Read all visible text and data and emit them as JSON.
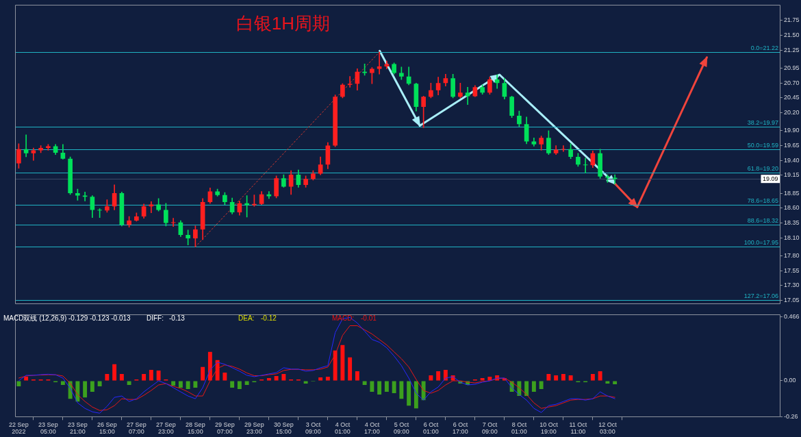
{
  "chart_data": [
    {
      "type": "candlestick",
      "title": "白银1H周期",
      "categories": [
        null,
        null,
        null,
        null,
        null,
        null,
        null,
        null,
        null,
        null,
        null,
        null,
        null,
        null,
        null,
        null,
        null,
        null,
        null,
        null,
        null,
        null,
        null,
        null,
        null,
        null,
        null,
        null,
        null,
        null,
        null,
        null,
        null,
        null,
        null,
        null,
        null,
        null,
        null,
        null,
        null,
        null,
        null,
        null,
        null,
        null,
        null,
        null,
        null,
        null,
        null,
        null,
        null,
        null,
        null,
        null,
        null,
        null,
        null,
        null,
        null,
        null,
        null,
        null,
        null,
        null,
        null,
        null,
        null,
        null,
        null,
        null,
        null,
        null,
        null,
        null,
        null,
        null,
        null,
        null,
        null,
        null,
        null,
        null,
        null,
        null,
        null,
        null,
        null,
        null,
        null,
        null,
        null,
        null,
        null,
        null,
        null,
        null,
        null,
        null,
        null,
        null,
        null,
        null
      ],
      "ohlc": [
        [
          19.35,
          19.68,
          19.27,
          19.59
        ],
        [
          19.59,
          19.83,
          19.46,
          19.52
        ],
        [
          19.52,
          19.61,
          19.4,
          19.57
        ],
        [
          19.57,
          19.65,
          19.53,
          19.61
        ],
        [
          19.61,
          19.67,
          19.57,
          19.64
        ],
        [
          19.64,
          19.67,
          19.5,
          19.53
        ],
        [
          19.53,
          19.67,
          19.42,
          19.43
        ],
        [
          19.43,
          19.46,
          18.83,
          18.85
        ],
        [
          18.85,
          18.92,
          18.73,
          18.81
        ],
        [
          18.81,
          18.87,
          18.72,
          18.79
        ],
        [
          18.79,
          18.81,
          18.44,
          18.57
        ],
        [
          18.57,
          18.59,
          18.44,
          18.56
        ],
        [
          18.56,
          18.74,
          18.53,
          18.63
        ],
        [
          18.63,
          18.99,
          18.57,
          18.85
        ],
        [
          18.85,
          18.87,
          18.3,
          18.32
        ],
        [
          18.32,
          18.46,
          18.28,
          18.39
        ],
        [
          18.39,
          18.52,
          18.38,
          18.46
        ],
        [
          18.46,
          18.67,
          18.43,
          18.63
        ],
        [
          18.63,
          18.71,
          18.52,
          18.66
        ],
        [
          18.66,
          18.76,
          18.55,
          18.57
        ],
        [
          18.57,
          18.68,
          18.3,
          18.35
        ],
        [
          18.35,
          18.43,
          18.29,
          18.36
        ],
        [
          18.36,
          18.39,
          18.12,
          18.15
        ],
        [
          18.15,
          18.23,
          17.98,
          18.09
        ],
        [
          18.09,
          18.3,
          17.95,
          18.24
        ],
        [
          18.24,
          18.76,
          18.07,
          18.7
        ],
        [
          18.7,
          18.94,
          18.68,
          18.88
        ],
        [
          18.88,
          18.92,
          18.8,
          18.82
        ],
        [
          18.82,
          18.86,
          18.66,
          18.7
        ],
        [
          18.7,
          18.77,
          18.5,
          18.53
        ],
        [
          18.53,
          18.72,
          18.48,
          18.68
        ],
        [
          18.68,
          18.81,
          18.45,
          18.65
        ],
        [
          18.65,
          18.82,
          18.63,
          18.67
        ],
        [
          18.67,
          18.88,
          18.66,
          18.83
        ],
        [
          18.83,
          18.88,
          18.76,
          18.8
        ],
        [
          18.8,
          19.14,
          18.77,
          19.1
        ],
        [
          19.1,
          19.16,
          18.95,
          18.96
        ],
        [
          18.96,
          19.23,
          18.83,
          19.16
        ],
        [
          19.16,
          19.24,
          18.95,
          18.99
        ],
        [
          18.99,
          19.14,
          18.95,
          19.09
        ],
        [
          19.09,
          19.23,
          19.07,
          19.18
        ],
        [
          19.18,
          19.46,
          19.16,
          19.33
        ],
        [
          19.33,
          19.7,
          19.26,
          19.65
        ],
        [
          19.65,
          20.5,
          19.63,
          20.47
        ],
        [
          20.47,
          20.69,
          20.45,
          20.67
        ],
        [
          20.67,
          20.81,
          20.63,
          20.69
        ],
        [
          20.69,
          20.94,
          20.58,
          20.89
        ],
        [
          20.89,
          21.02,
          20.83,
          20.87
        ],
        [
          20.87,
          20.96,
          20.69,
          20.94
        ],
        [
          20.94,
          21.22,
          20.85,
          20.98
        ],
        [
          20.98,
          21.07,
          20.94,
          21.02
        ],
        [
          21.02,
          21.04,
          20.85,
          20.87
        ],
        [
          20.87,
          20.97,
          20.76,
          20.81
        ],
        [
          20.81,
          20.97,
          20.67,
          20.69
        ],
        [
          20.69,
          20.7,
          20.23,
          20.3
        ],
        [
          20.3,
          20.48,
          19.95,
          20.47
        ],
        [
          20.47,
          20.7,
          20.45,
          20.58
        ],
        [
          20.58,
          20.8,
          20.5,
          20.7
        ],
        [
          20.7,
          20.85,
          20.65,
          20.78
        ],
        [
          20.78,
          20.85,
          20.45,
          20.47
        ],
        [
          20.47,
          20.7,
          20.45,
          20.54
        ],
        [
          20.54,
          20.63,
          20.34,
          20.48
        ],
        [
          20.48,
          20.66,
          20.47,
          20.63
        ],
        [
          20.63,
          20.67,
          20.51,
          20.54
        ],
        [
          20.54,
          20.8,
          20.51,
          20.76
        ],
        [
          20.76,
          20.84,
          20.61,
          20.7
        ],
        [
          20.7,
          20.78,
          20.43,
          20.47
        ],
        [
          20.47,
          20.48,
          20.12,
          20.15
        ],
        [
          20.15,
          20.23,
          19.97,
          20.01
        ],
        [
          20.01,
          20.13,
          19.68,
          19.72
        ],
        [
          19.72,
          19.78,
          19.64,
          19.67
        ],
        [
          19.67,
          19.81,
          19.57,
          19.78
        ],
        [
          19.78,
          19.9,
          19.5,
          19.52
        ],
        [
          19.52,
          19.65,
          19.5,
          19.58
        ],
        [
          19.58,
          19.65,
          19.55,
          19.59
        ],
        [
          19.59,
          19.68,
          19.43,
          19.46
        ],
        [
          19.46,
          19.52,
          19.3,
          19.33
        ],
        [
          19.33,
          19.44,
          19.19,
          19.32
        ],
        [
          19.32,
          19.56,
          19.28,
          19.52
        ],
        [
          19.52,
          19.59,
          19.1,
          19.13
        ],
        [
          19.13,
          19.16,
          19.03,
          19.11
        ],
        [
          19.11,
          19.16,
          19,
          19.09
        ],
        null,
        null,
        null,
        null,
        null,
        null,
        null,
        null,
        null,
        null,
        null,
        null,
        null,
        null,
        null,
        null,
        null,
        null,
        null,
        null,
        null,
        null
      ],
      "colors": [
        "#ff2020",
        "#00e05a",
        "#ff2020",
        "#ff2020",
        "#ff2020",
        "#00e05a",
        "#00e05a",
        "#00e05a",
        "#00e05a",
        "#00e05a",
        "#00e05a",
        "#00e05a",
        "#ff2020",
        "#ff2020",
        "#00e05a",
        "#ff2020",
        "#ff2020",
        "#ff2020",
        "#ff2020",
        "#00e05a",
        "#00e05a",
        "#ff2020",
        "#00e05a",
        "#00e05a",
        "#ff2020",
        "#ff2020",
        "#ff2020",
        "#00e05a",
        "#00e05a",
        "#00e05a",
        "#ff2020",
        "#00e05a",
        "#ff2020",
        "#ff2020",
        "#00e05a",
        "#ff2020",
        "#00e05a",
        "#ff2020",
        "#00e05a",
        "#ff2020",
        "#ff2020",
        "#ff2020",
        "#ff2020",
        "#ff2020",
        "#ff2020",
        "#ff2020",
        "#ff2020",
        "#00e05a",
        "#ff2020",
        "#ff2020",
        "#ff2020",
        "#00e05a",
        "#00e05a",
        "#00e05a",
        "#00e05a",
        "#ff2020",
        "#ff2020",
        "#ff2020",
        "#ff2020",
        "#00e05a",
        "#ff2020",
        "#00e05a",
        "#ff2020",
        "#00e05a",
        "#ff2020",
        "#00e05a",
        "#00e05a",
        "#00e05a",
        "#00e05a",
        "#00e05a",
        "#00e05a",
        "#ff2020",
        "#00e05a",
        "#ff2020",
        "#ff2020",
        "#00e05a",
        "#00e05a",
        "#00e05a",
        "#ff2020",
        "#00e05a",
        "#00e05a",
        "#00e05a",
        null,
        null,
        null,
        null,
        null,
        null,
        null,
        null,
        null,
        null,
        null,
        null,
        null,
        null,
        null,
        null,
        null,
        null,
        null,
        null,
        null,
        null
      ],
      "series": [
        {
          "type": "line",
          "color": "#d8392f",
          "line_style": "dotted",
          "values": [
            null,
            null,
            null,
            null,
            null,
            null,
            null,
            null,
            null,
            null,
            null,
            null,
            null,
            null,
            null,
            null,
            null,
            null,
            null,
            null,
            null,
            null,
            null,
            null,
            17.95,
            null,
            null,
            null,
            null,
            null,
            null,
            null,
            null,
            null,
            null,
            null,
            null,
            null,
            null,
            null,
            null,
            null,
            null,
            null,
            null,
            null,
            null,
            null,
            null,
            21.22,
            null,
            null,
            null,
            null,
            null,
            null,
            null,
            null,
            null,
            null,
            null,
            null,
            null,
            null,
            null,
            null,
            null,
            null,
            null,
            null,
            null,
            null,
            null,
            null,
            null,
            null,
            null,
            null,
            null,
            null,
            null,
            null,
            null,
            null,
            null,
            null,
            null,
            null,
            null,
            null,
            null,
            null,
            null,
            null,
            null,
            null,
            null,
            null,
            null,
            null,
            null,
            null,
            null,
            null
          ]
        }
      ],
      "ylim": [
        16.98,
        22.01
      ],
      "yticks": [
        21.75,
        {
          "value": 21.5,
          "label": "21.50"
        },
        21.25,
        20.95,
        {
          "value": 20.7,
          "label": "20.70"
        },
        20.45,
        {
          "value": 20.2,
          "label": "20.20"
        },
        {
          "value": 19.9,
          "label": "19.90"
        },
        19.65,
        {
          "value": 19.4,
          "label": "19.40"
        },
        19.15,
        18.85,
        {
          "value": 18.6,
          "label": "18.60"
        },
        18.35,
        {
          "value": 18.1,
          "label": "18.10"
        },
        {
          "value": 17.8,
          "label": "17.80"
        },
        17.55,
        {
          "value": 17.3,
          "label": "17.30"
        },
        17.05
      ],
      "ref_lines": [
        {
          "axis": "y",
          "value": 21.22,
          "label": "0.0=21.22",
          "color": "#1fb3c3"
        },
        {
          "axis": "y",
          "value": 19.97,
          "label": "38.2=19.97",
          "color": "#1fb3c3"
        },
        {
          "axis": "y",
          "value": 19.59,
          "label": "50.0=19.59",
          "color": "#1fb3c3"
        },
        {
          "axis": "y",
          "value": 19.2,
          "label": "61.8=19.20",
          "color": "#1fb3c3"
        },
        {
          "axis": "y",
          "value": 18.65,
          "label": "78.6=18.65",
          "color": "#1fb3c3"
        },
        {
          "axis": "y",
          "value": 18.32,
          "label": "88.6=18.32",
          "color": "#1fb3c3"
        },
        {
          "axis": "y",
          "value": 17.95,
          "label": "100.0=17.95",
          "color": "#1fb3c3"
        },
        {
          "axis": "y",
          "value": 17.06,
          "label": "127.2=17.06",
          "color": "#1fb3c3"
        },
        {
          "axis": "y",
          "value": 19.09,
          "color": "#3b4866"
        }
      ],
      "annotations": [
        {
          "text": "19.09",
          "y": 19.09
        }
      ],
      "tick_labels": "y",
      "marker": "none"
    },
    {
      "type": "bar",
      "title": "MACD双线 (12,26,9) -0.129 -0.123 -0.013",
      "categories": [
        "22 Sep 2022",
        null,
        null,
        null,
        "23 Sep 05:00",
        null,
        null,
        null,
        "23 Sep 21:00",
        null,
        null,
        null,
        "26 Sep 15:00",
        null,
        null,
        null,
        "27 Sep 07:00",
        null,
        null,
        null,
        "27 Sep 23:00",
        null,
        null,
        null,
        "28 Sep 15:00",
        null,
        null,
        null,
        "29 Sep 07:00",
        null,
        null,
        null,
        "29 Sep 23:00",
        null,
        null,
        null,
        "30 Sep 15:00",
        null,
        null,
        null,
        "3 Oct 09:00",
        null,
        null,
        null,
        "4 Oct 01:00",
        null,
        null,
        null,
        "4 Oct 17:00",
        null,
        null,
        null,
        "5 Oct 09:00",
        null,
        null,
        null,
        "6 Oct 01:00",
        null,
        null,
        null,
        "6 Oct 17:00",
        null,
        null,
        null,
        "7 Oct 09:00",
        null,
        null,
        null,
        "8 Oct 01:00",
        null,
        null,
        null,
        "10 Oct 19:00",
        null,
        null,
        null,
        "11 Oct 11:00",
        null,
        null,
        null,
        "12 Oct 03:00",
        null,
        null,
        null,
        null,
        null,
        null,
        null,
        null,
        null,
        null,
        null,
        null,
        null,
        null,
        null,
        null,
        null,
        null,
        null,
        null,
        null,
        null,
        null
      ],
      "series": [
        {
          "type": "bar",
          "values": [
            -0.04,
            0.03,
            0.01,
            0.01,
            0.01,
            -0.01,
            -0.03,
            -0.13,
            -0.15,
            -0.12,
            -0.08,
            -0.04,
            0.05,
            0.12,
            0.05,
            -0.03,
            0.01,
            0.05,
            0.08,
            0.075,
            0.01,
            -0.035,
            -0.05,
            -0.06,
            -0.05,
            0.1,
            0.21,
            0.15,
            0.06,
            -0.05,
            -0.06,
            -0.03,
            -0.01,
            0.01,
            0.02,
            0.035,
            0.05,
            0.01,
            0.01,
            -0.02,
            -0.005,
            0.025,
            0.03,
            0.22,
            0.26,
            0.17,
            0.07,
            -0.03,
            -0.08,
            -0.1,
            -0.08,
            -0.09,
            -0.13,
            -0.18,
            -0.2,
            -0.14,
            0.04,
            0.07,
            0.08,
            0.04,
            -0.02,
            -0.03,
            0.01,
            0.02,
            0.03,
            0.04,
            0.02,
            -0.08,
            -0.11,
            -0.11,
            -0.08,
            -0.06,
            0.05,
            0.04,
            0.05,
            0.04,
            -0.01,
            -0.01,
            0.05,
            0.07,
            -0.02,
            -0.025,
            null,
            null,
            null,
            null,
            null,
            null,
            null,
            null,
            null,
            null,
            null,
            null,
            null,
            null,
            null,
            null,
            null,
            null,
            null,
            null,
            null,
            null
          ],
          "colors": [
            "#3ca01e",
            "#ff1010",
            "#ff1010",
            "#ff1010",
            "#ff1010",
            "#3ca01e",
            "#3ca01e",
            "#3ca01e",
            "#3ca01e",
            "#3ca01e",
            "#3ca01e",
            "#3ca01e",
            "#ff1010",
            "#ff1010",
            "#ff1010",
            "#3ca01e",
            "#ff1010",
            "#ff1010",
            "#ff1010",
            "#ff1010",
            "#ff1010",
            "#3ca01e",
            "#3ca01e",
            "#3ca01e",
            "#3ca01e",
            "#ff1010",
            "#ff1010",
            "#ff1010",
            "#ff1010",
            "#3ca01e",
            "#3ca01e",
            "#3ca01e",
            "#3ca01e",
            "#ff1010",
            "#ff1010",
            "#ff1010",
            "#ff1010",
            "#ff1010",
            "#ff1010",
            "#3ca01e",
            "#3ca01e",
            "#ff1010",
            "#ff1010",
            "#ff1010",
            "#ff1010",
            "#ff1010",
            "#ff1010",
            "#3ca01e",
            "#3ca01e",
            "#3ca01e",
            "#3ca01e",
            "#3ca01e",
            "#3ca01e",
            "#3ca01e",
            "#3ca01e",
            "#3ca01e",
            "#ff1010",
            "#ff1010",
            "#ff1010",
            "#ff1010",
            "#3ca01e",
            "#3ca01e",
            "#ff1010",
            "#ff1010",
            "#ff1010",
            "#ff1010",
            "#ff1010",
            "#3ca01e",
            "#3ca01e",
            "#3ca01e",
            "#3ca01e",
            "#3ca01e",
            "#ff1010",
            "#ff1010",
            "#ff1010",
            "#ff1010",
            "#3ca01e",
            "#3ca01e",
            "#ff1010",
            "#ff1010",
            "#3ca01e",
            "#3ca01e",
            null,
            null,
            null,
            null,
            null,
            null,
            null,
            null,
            null,
            null,
            null,
            null,
            null,
            null,
            null,
            null,
            null,
            null,
            null,
            null,
            null,
            null
          ]
        },
        {
          "type": "line",
          "color": "#2828ff",
          "values": [
            0,
            0.04,
            0.04,
            0.045,
            0.048,
            0.044,
            0.02,
            -0.055,
            -0.16,
            -0.2,
            -0.225,
            -0.235,
            -0.185,
            -0.12,
            -0.11,
            -0.15,
            -0.13,
            -0.08,
            -0.04,
            0,
            -0.02,
            -0.05,
            -0.08,
            -0.11,
            -0.13,
            -0.05,
            0.08,
            0.135,
            0.12,
            0.095,
            0.07,
            0.04,
            0.03,
            0.04,
            0.05,
            0.06,
            0.095,
            0.085,
            0.085,
            0.07,
            0.075,
            0.095,
            0.11,
            0.35,
            0.45,
            0.46,
            0.42,
            0.36,
            0.3,
            0.28,
            0.24,
            0.18,
            0.11,
            0.02,
            -0.09,
            -0.14,
            -0.08,
            -0.045,
            0.02,
            0.03,
            -0.01,
            -0.03,
            -0.025,
            -0.01,
            0,
            0.02,
            0.02,
            -0.05,
            -0.1,
            -0.14,
            -0.2,
            -0.23,
            -0.18,
            -0.17,
            -0.15,
            -0.13,
            -0.13,
            -0.14,
            -0.13,
            -0.08,
            -0.11,
            -0.13,
            null,
            null,
            null,
            null,
            null,
            null,
            null,
            null,
            null,
            null,
            null,
            null,
            null,
            null,
            null,
            null,
            null,
            null,
            null,
            null,
            null,
            null
          ]
        },
        {
          "type": "line",
          "color": "#e81818",
          "values": [
            0.02,
            0.035,
            0.04,
            0.042,
            0.044,
            0.044,
            0.035,
            -0.017,
            -0.1,
            -0.15,
            -0.19,
            -0.215,
            -0.21,
            -0.18,
            -0.13,
            -0.135,
            -0.135,
            -0.105,
            -0.07,
            -0.03,
            -0.02,
            -0.04,
            -0.055,
            -0.08,
            -0.11,
            -0.11,
            0,
            0.09,
            0.115,
            0.105,
            0.085,
            0.057,
            0.037,
            0.037,
            0.045,
            0.05,
            0.075,
            0.083,
            0.083,
            0.08,
            0.08,
            0.085,
            0.1,
            0.19,
            0.33,
            0.4,
            0.4,
            0.37,
            0.34,
            0.3,
            0.26,
            0.21,
            0.16,
            0.1,
            0.01,
            -0.07,
            -0.09,
            -0.07,
            -0.03,
            0,
            0,
            -0.01,
            -0.015,
            -0.005,
            0,
            0.015,
            0.02,
            -0.01,
            -0.05,
            -0.1,
            -0.16,
            -0.2,
            -0.19,
            -0.18,
            -0.16,
            -0.14,
            -0.135,
            -0.135,
            -0.13,
            -0.11,
            -0.11,
            -0.12,
            null,
            null,
            null,
            null,
            null,
            null,
            null,
            null,
            null,
            null,
            null,
            null,
            null,
            null,
            null,
            null,
            null,
            null,
            null,
            null,
            null,
            null
          ]
        }
      ],
      "ylim": [
        -0.265,
        0.48
      ],
      "yticks": [
        0.466,
        {
          "value": 0,
          "label": "0.00"
        },
        -0.26
      ],
      "annotations": [
        "DIFF:",
        "-0.13",
        "DEA:",
        "-0.12",
        "MACD:",
        "-0.01"
      ],
      "marker": "none"
    }
  ]
}
